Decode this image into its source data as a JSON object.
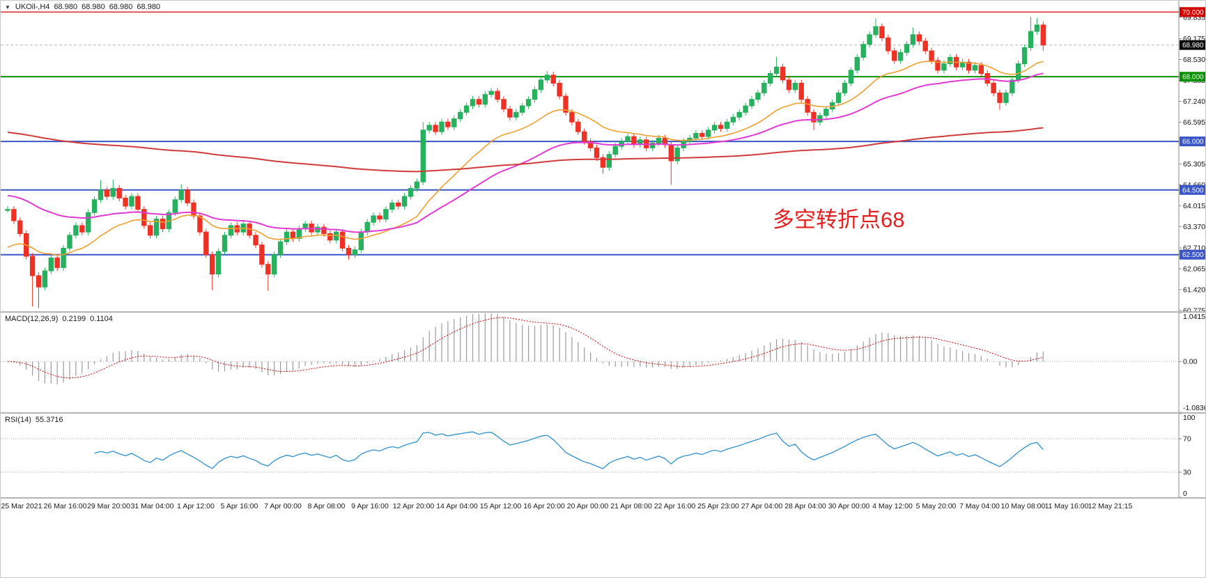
{
  "header": {
    "symbol": "UKOil-,H4",
    "ohlc": [
      "68.980",
      "68.980",
      "68.980",
      "68.980"
    ]
  },
  "annotation": {
    "text": "多空转折点68",
    "color": "#e32020"
  },
  "time_axis": {
    "first_x": 30,
    "spacing": 62.5,
    "labels": [
      "25 Mar 2021",
      "26 Mar 16:00",
      "29 Mar 20:00",
      "31 Mar 04:00",
      "1 Apr 12:00",
      "5 Apr 16:00",
      "7 Apr 00:00",
      "8 Apr 08:00",
      "9 Apr 16:00",
      "12 Apr 20:00",
      "14 Apr 04:00",
      "15 Apr 12:00",
      "16 Apr 20:00",
      "20 Apr 00:00",
      "21 Apr 08:00",
      "22 Apr 16:00",
      "25 Apr 23:00",
      "27 Apr 04:00",
      "28 Apr 04:00",
      "30 Apr 00:00",
      "4 May 12:00",
      "5 May 20:00",
      "7 May 04:00",
      "10 May 08:00",
      "11 May 16:00",
      "12 May 21:15"
    ]
  },
  "chart_data": [
    {
      "id": "main",
      "type": "candlestick",
      "symbol": "UKOil-",
      "timeframe": "H4",
      "ylim": [
        60.75,
        70.35
      ],
      "x_start": 10,
      "x_step": 8.9,
      "candle_width": 6.4,
      "up_color": "#27b15e",
      "down_color": "#ee3125",
      "axis_ticks": [
        69.835,
        69.175,
        68.53,
        67.885,
        67.24,
        66.595,
        65.305,
        64.66,
        64.015,
        63.37,
        62.71,
        62.065,
        61.42,
        60.775
      ],
      "hlines": [
        {
          "price": 70.0,
          "color": "#d40000",
          "width": 1.2,
          "dashed": false,
          "label": "70.000",
          "label_bg": "#d40000"
        },
        {
          "price": 68.98,
          "color": "#b8b8b8",
          "width": 1,
          "dashed": true,
          "label": "68.980",
          "label_bg": "#0a0a0a"
        },
        {
          "price": 68.0,
          "color": "#089000",
          "width": 2,
          "dashed": false,
          "label": "68.000",
          "label_bg": "#089000"
        },
        {
          "price": 66.0,
          "color": "#3a55c8",
          "width": 2,
          "dashed": false,
          "label": "66.000",
          "label_bg": "#3a55c8"
        },
        {
          "price": 64.5,
          "color": "#3a55c8",
          "width": 2,
          "dashed": false,
          "label": "64.500",
          "label_bg": "#3a55c8"
        },
        {
          "price": 62.5,
          "color": "#3a55c8",
          "width": 2,
          "dashed": false,
          "label": "62.500",
          "label_bg": "#3a55c8"
        }
      ],
      "mas": [
        {
          "name": "fast-ma",
          "period": 20,
          "seed": 62.6,
          "color": "#f0a030",
          "width": 1.6
        },
        {
          "name": "medium-ma",
          "period": 45,
          "seed": 64.35,
          "color": "#e23ad2",
          "width": 2
        },
        {
          "name": "slow-ma",
          "period": 250,
          "seed": 66.3,
          "color": "#d03a3a",
          "width": 2
        }
      ],
      "closes": [
        63.9,
        63.55,
        63.15,
        62.45,
        61.85,
        61.5,
        62.0,
        62.4,
        62.1,
        62.7,
        63.1,
        63.4,
        63.2,
        63.8,
        64.2,
        64.5,
        64.3,
        64.55,
        64.25,
        64.0,
        64.3,
        63.9,
        63.4,
        63.1,
        63.6,
        63.3,
        63.8,
        64.2,
        64.5,
        64.1,
        63.7,
        63.2,
        62.5,
        61.9,
        62.6,
        63.1,
        63.4,
        63.2,
        63.45,
        63.1,
        62.8,
        62.2,
        61.9,
        62.5,
        62.9,
        63.2,
        63.0,
        63.3,
        63.45,
        63.2,
        63.35,
        63.15,
        62.95,
        63.2,
        62.7,
        62.5,
        62.65,
        63.2,
        63.5,
        63.7,
        63.6,
        63.9,
        64.1,
        64.0,
        64.3,
        64.55,
        64.75,
        66.35,
        66.5,
        66.3,
        66.6,
        66.45,
        66.7,
        66.9,
        67.1,
        67.3,
        67.15,
        67.45,
        67.55,
        67.3,
        67.0,
        66.75,
        66.9,
        67.1,
        67.3,
        67.6,
        67.9,
        68.05,
        67.8,
        67.4,
        66.9,
        66.6,
        66.3,
        66.0,
        65.8,
        65.5,
        65.2,
        65.6,
        65.85,
        66.0,
        66.15,
        65.9,
        66.05,
        65.8,
        65.95,
        66.1,
        65.9,
        65.4,
        65.8,
        66.0,
        66.1,
        66.25,
        66.15,
        66.35,
        66.5,
        66.4,
        66.6,
        66.75,
        66.9,
        67.1,
        67.3,
        67.5,
        67.8,
        68.1,
        68.3,
        67.9,
        67.6,
        67.8,
        67.3,
        66.9,
        66.6,
        66.8,
        67.0,
        67.2,
        67.5,
        67.8,
        68.2,
        68.6,
        69.0,
        69.3,
        69.55,
        69.2,
        68.8,
        68.5,
        68.75,
        69.0,
        69.3,
        69.1,
        68.8,
        68.5,
        68.2,
        68.4,
        68.6,
        68.3,
        68.45,
        68.2,
        68.35,
        68.1,
        67.8,
        67.5,
        67.2,
        67.5,
        67.9,
        68.4,
        68.9,
        69.4,
        69.6,
        68.98
      ],
      "wick_overrides": {
        "4": {
          "l": 60.9
        },
        "5": {
          "l": 60.85
        },
        "15": {
          "h": 64.8
        },
        "17": {
          "h": 64.82
        },
        "28": {
          "h": 64.68
        },
        "33": {
          "l": 61.4
        },
        "42": {
          "l": 61.38
        },
        "55": {
          "l": 62.35
        },
        "67": {
          "h": 66.6
        },
        "87": {
          "h": 68.18
        },
        "96": {
          "l": 65.0
        },
        "107": {
          "l": 64.66
        },
        "124": {
          "h": 68.62
        },
        "130": {
          "l": 66.35
        },
        "140": {
          "h": 69.8
        },
        "146": {
          "h": 69.52
        },
        "160": {
          "l": 66.98
        },
        "165": {
          "h": 69.85
        },
        "166": {
          "h": 69.82
        },
        "167": {
          "l": 68.8
        }
      }
    },
    {
      "id": "macd",
      "type": "macd_histogram",
      "title": "MACD(12,26,9)",
      "values": [
        "0.2199",
        "0.1104"
      ],
      "fast": 12,
      "slow": 26,
      "signal": 9,
      "ylim": [
        -1.0836,
        1.0415
      ],
      "axis_labels": [
        {
          "v": 1.0415,
          "text": "1.0415"
        },
        {
          "v": 0,
          "text": "0.00"
        },
        {
          "v": -1.0836,
          "text": "-1.0836"
        }
      ],
      "hist_color": "#9b9b9b",
      "signal_color": "#d40000"
    },
    {
      "id": "rsi",
      "type": "line",
      "title": "RSI(14)",
      "value": "55.3716",
      "period": 14,
      "ylim": [
        0,
        100
      ],
      "levels": [
        70,
        30
      ],
      "axis_labels": [
        {
          "v": 100,
          "text": "100"
        },
        {
          "v": 70,
          "text": "70"
        },
        {
          "v": 30,
          "text": "30"
        },
        {
          "v": 0,
          "text": "0"
        }
      ],
      "line_color": "#2f8fd0"
    }
  ]
}
